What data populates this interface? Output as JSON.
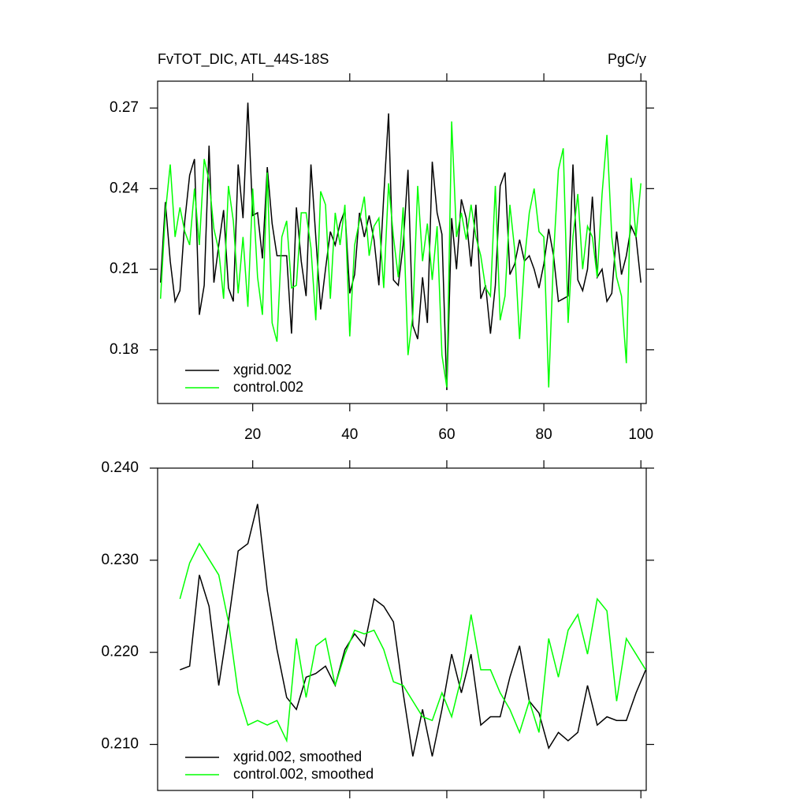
{
  "chart_data": [
    {
      "type": "line",
      "title": "FvTOT_DIC, ATL_44S-18S",
      "units": "PgC/y",
      "x": [
        1,
        2,
        3,
        4,
        5,
        6,
        7,
        8,
        9,
        10,
        11,
        12,
        13,
        14,
        15,
        16,
        17,
        18,
        19,
        20,
        21,
        22,
        23,
        24,
        25,
        26,
        27,
        28,
        29,
        30,
        31,
        32,
        33,
        34,
        35,
        36,
        37,
        38,
        39,
        40,
        41,
        42,
        43,
        44,
        45,
        46,
        47,
        48,
        49,
        50,
        51,
        52,
        53,
        54,
        55,
        56,
        57,
        58,
        59,
        60,
        61,
        62,
        63,
        64,
        65,
        66,
        67,
        68,
        69,
        70,
        71,
        72,
        73,
        74,
        75,
        76,
        77,
        78,
        79,
        80,
        81,
        82,
        83,
        84,
        85,
        86,
        87,
        88,
        89,
        90,
        91,
        92,
        93,
        94,
        95,
        96,
        97,
        98,
        99,
        100
      ],
      "series": [
        {
          "name": "xgrid.002",
          "color": "#000000",
          "values": [
            0.205,
            0.235,
            0.213,
            0.198,
            0.202,
            0.228,
            0.245,
            0.251,
            0.193,
            0.204,
            0.256,
            0.205,
            0.219,
            0.232,
            0.203,
            0.198,
            0.249,
            0.229,
            0.272,
            0.23,
            0.231,
            0.214,
            0.248,
            0.227,
            0.215,
            0.215,
            0.215,
            0.186,
            0.233,
            0.213,
            0.2,
            0.249,
            0.222,
            0.195,
            0.21,
            0.224,
            0.219,
            0.227,
            0.232,
            0.201,
            0.208,
            0.231,
            0.222,
            0.23,
            0.221,
            0.204,
            0.237,
            0.268,
            0.206,
            0.204,
            0.219,
            0.247,
            0.189,
            0.184,
            0.207,
            0.19,
            0.25,
            0.231,
            0.223,
            0.165,
            0.229,
            0.21,
            0.236,
            0.229,
            0.211,
            0.234,
            0.199,
            0.204,
            0.186,
            0.204,
            0.241,
            0.246,
            0.208,
            0.212,
            0.221,
            0.213,
            0.215,
            0.21,
            0.203,
            0.212,
            0.225,
            0.215,
            0.198,
            0.199,
            0.2,
            0.249,
            0.206,
            0.202,
            0.21,
            0.237,
            0.207,
            0.21,
            0.198,
            0.201,
            0.224,
            0.208,
            0.215,
            0.226,
            0.222,
            0.205
          ]
        },
        {
          "name": "control.002",
          "color": "#00ff00",
          "values": [
            0.199,
            0.231,
            0.249,
            0.222,
            0.233,
            0.224,
            0.219,
            0.24,
            0.219,
            0.251,
            0.243,
            0.225,
            0.217,
            0.199,
            0.241,
            0.228,
            0.201,
            0.222,
            0.196,
            0.24,
            0.207,
            0.193,
            0.246,
            0.19,
            0.183,
            0.222,
            0.228,
            0.203,
            0.204,
            0.231,
            0.231,
            0.218,
            0.191,
            0.239,
            0.234,
            0.199,
            0.231,
            0.219,
            0.234,
            0.185,
            0.219,
            0.228,
            0.237,
            0.215,
            0.226,
            0.229,
            0.203,
            0.242,
            0.222,
            0.207,
            0.233,
            0.178,
            0.193,
            0.241,
            0.213,
            0.227,
            0.206,
            0.226,
            0.178,
            0.166,
            0.265,
            0.222,
            0.231,
            0.221,
            0.234,
            0.222,
            0.215,
            0.203,
            0.2,
            0.241,
            0.191,
            0.2,
            0.234,
            0.217,
            0.184,
            0.213,
            0.231,
            0.24,
            0.224,
            0.222,
            0.166,
            0.215,
            0.247,
            0.255,
            0.19,
            0.222,
            0.238,
            0.21,
            0.226,
            0.222,
            0.207,
            0.238,
            0.26,
            0.222,
            0.207,
            0.2,
            0.175,
            0.244,
            0.222,
            0.242
          ]
        }
      ],
      "xlim": [
        0.4,
        101.1
      ],
      "xticks": [
        20,
        40,
        60,
        80,
        100
      ],
      "ylim": [
        0.16,
        0.28
      ],
      "yticks": [
        0.18,
        0.21,
        0.24,
        0.27
      ]
    },
    {
      "type": "line",
      "x": [
        5,
        7,
        9,
        11,
        13,
        15,
        17,
        19,
        21,
        23,
        25,
        27,
        29,
        31,
        33,
        35,
        37,
        39,
        41,
        43,
        45,
        47,
        49,
        51,
        53,
        55,
        57,
        59,
        61,
        63,
        65,
        67,
        69,
        71,
        73,
        75,
        77,
        79,
        81,
        83,
        85,
        87,
        89,
        91,
        93,
        95,
        97,
        99,
        101
      ],
      "series": [
        {
          "name": "xgrid.002, smoothed",
          "color": "#000000",
          "values": [
            0.2181,
            0.2185,
            0.2284,
            0.225,
            0.2164,
            0.2233,
            0.231,
            0.2318,
            0.2361,
            0.2267,
            0.2203,
            0.2151,
            0.2138,
            0.2173,
            0.2177,
            0.2185,
            0.2164,
            0.2203,
            0.222,
            0.2207,
            0.2258,
            0.225,
            0.2233,
            0.2156,
            0.2087,
            0.2138,
            0.2087,
            0.2138,
            0.2198,
            0.2156,
            0.2198,
            0.2121,
            0.213,
            0.213,
            0.2173,
            0.2207,
            0.2147,
            0.2134,
            0.2096,
            0.2113,
            0.2104,
            0.2113,
            0.2164,
            0.2121,
            0.213,
            0.2126,
            0.2126,
            0.2156,
            0.2181
          ]
        },
        {
          "name": "control.002, smoothed",
          "color": "#00ff00",
          "values": [
            0.2258,
            0.2297,
            0.2318,
            0.2301,
            0.2284,
            0.2233,
            0.2156,
            0.2121,
            0.2126,
            0.2121,
            0.2126,
            0.2104,
            0.2215,
            0.2151,
            0.2207,
            0.2215,
            0.2164,
            0.2198,
            0.2224,
            0.222,
            0.2224,
            0.2203,
            0.2168,
            0.2164,
            0.2147,
            0.213,
            0.2126,
            0.2156,
            0.213,
            0.2173,
            0.2241,
            0.2181,
            0.2181,
            0.2156,
            0.2138,
            0.2113,
            0.2147,
            0.2113,
            0.2215,
            0.2173,
            0.2224,
            0.2241,
            0.2198,
            0.2258,
            0.2245,
            0.2147,
            0.2215,
            0.2198,
            0.2181
          ]
        }
      ],
      "xlim": [
        0.4,
        101.1
      ],
      "ylim": [
        0.205,
        0.24
      ],
      "yticks": [
        {
          "value": 0.21,
          "label": "0.210"
        },
        {
          "value": 0.22,
          "label": "0.220"
        },
        {
          "value": 0.23,
          "label": "0.230"
        },
        {
          "value": 0.24,
          "label": "0.240"
        }
      ]
    }
  ]
}
